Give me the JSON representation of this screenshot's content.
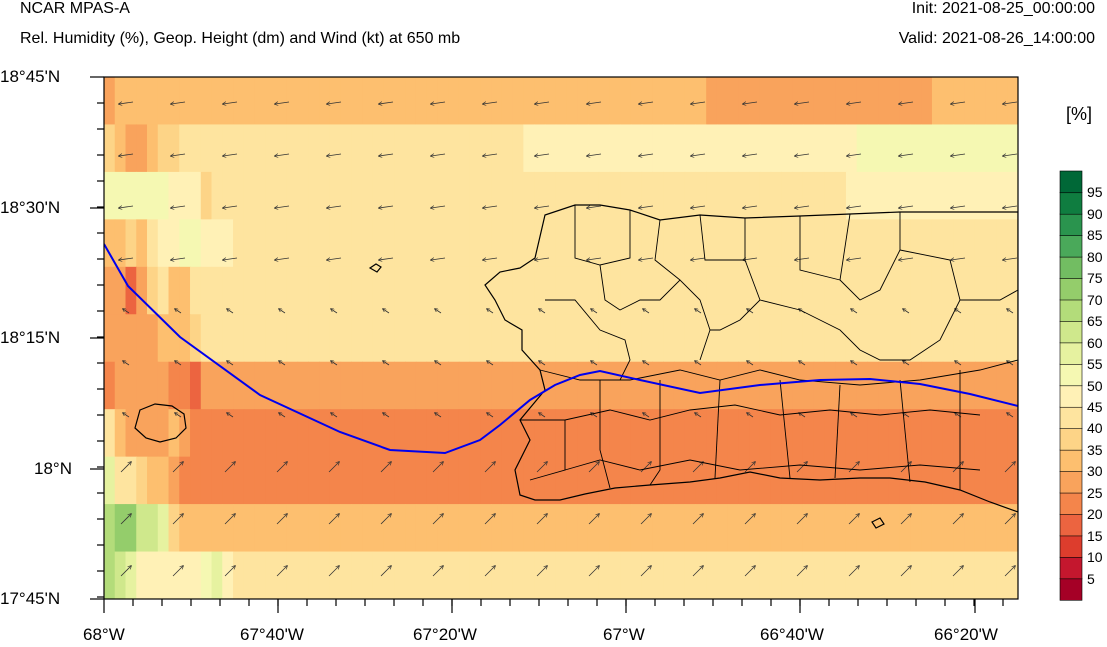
{
  "header": {
    "model": "NCAR MPAS-A",
    "description": "Rel. Humidity (%), Geop. Height (dm) and Wind (kt) at 650 mb",
    "init": "Init: 2021-08-25_00:00:00",
    "valid": "Valid: 2021-08-26_14:00:00"
  },
  "axes": {
    "lat_ticks": [
      "18°45'N",
      "18°30'N",
      "18°15'N",
      "18°N",
      "17°45'N"
    ],
    "lon_ticks": [
      "68°W",
      "67°40'W",
      "67°20'W",
      "67°W",
      "66°40'W",
      "66°20'W"
    ],
    "lat_range": [
      17.75,
      18.75
    ],
    "lon_range": [
      -68.0,
      -66.2467
    ]
  },
  "colorbar": {
    "unit": "[%]",
    "levels": [
      "5",
      "10",
      "15",
      "20",
      "25",
      "30",
      "35",
      "40",
      "45",
      "50",
      "55",
      "60",
      "65",
      "70",
      "75",
      "80",
      "85",
      "90",
      "95"
    ],
    "colors": [
      "#a50026",
      "#c4172e",
      "#dd3d2d",
      "#ec6440",
      "#f4854b",
      "#f9a35c",
      "#fdbf6f",
      "#fdd487",
      "#fee49f",
      "#fff1b6",
      "#f5f8b2",
      "#e6f2a0",
      "#cfe88c",
      "#b3dc7a",
      "#94cd6b",
      "#72bd62",
      "#4aa95a",
      "#2a944e",
      "#0f7d40",
      "#006837"
    ]
  },
  "chart_data": {
    "type": "heatmap",
    "variable": "Relative humidity (%)",
    "cells_note": "RH bin index per row (north to south), 0=<5 ... 19=>95",
    "rh_grid": [
      [
        5,
        6,
        6,
        6,
        6,
        6,
        6,
        6,
        6,
        6,
        6,
        6,
        6,
        6,
        6,
        6,
        6,
        6,
        6,
        6,
        6,
        6,
        6,
        6,
        6,
        6,
        6,
        6,
        6,
        6,
        6,
        6,
        6,
        6,
        6,
        6,
        6,
        6,
        6,
        6,
        6,
        6,
        6,
        6,
        6,
        6,
        6,
        6,
        6,
        6,
        6,
        6,
        6,
        6,
        6,
        6,
        5,
        5,
        5,
        5,
        5,
        5,
        5,
        5,
        5,
        5,
        5,
        5,
        5,
        5,
        5,
        5,
        5,
        5,
        5,
        5,
        5,
        6,
        6,
        6,
        6,
        6,
        6,
        6,
        6
      ],
      [
        7,
        6,
        5,
        5,
        6,
        7,
        7,
        8,
        8,
        8,
        8,
        8,
        8,
        8,
        8,
        8,
        8,
        8,
        8,
        8,
        8,
        8,
        8,
        8,
        8,
        8,
        8,
        8,
        8,
        8,
        8,
        8,
        8,
        8,
        8,
        8,
        8,
        8,
        8,
        9,
        9,
        9,
        9,
        9,
        9,
        9,
        9,
        9,
        9,
        9,
        9,
        9,
        9,
        9,
        9,
        9,
        9,
        9,
        9,
        9,
        9,
        9,
        9,
        9,
        9,
        9,
        9,
        9,
        9,
        9,
        10,
        10,
        10,
        10,
        10,
        10,
        10,
        10,
        10,
        10,
        10,
        10,
        10,
        10,
        10
      ],
      [
        10,
        10,
        10,
        10,
        10,
        10,
        9,
        9,
        9,
        7,
        8,
        8,
        8,
        8,
        8,
        8,
        8,
        8,
        8,
        8,
        8,
        8,
        8,
        8,
        8,
        8,
        8,
        8,
        8,
        8,
        8,
        8,
        8,
        8,
        8,
        8,
        8,
        8,
        8,
        8,
        8,
        8,
        8,
        8,
        8,
        8,
        8,
        8,
        8,
        8,
        8,
        8,
        8,
        8,
        8,
        8,
        8,
        8,
        8,
        8,
        8,
        8,
        8,
        8,
        8,
        8,
        8,
        8,
        8,
        9,
        9,
        9,
        9,
        9,
        9,
        9,
        9,
        9,
        9,
        9,
        9,
        9,
        9,
        9,
        9
      ],
      [
        6,
        6,
        7,
        6,
        8,
        9,
        9,
        10,
        10,
        9,
        9,
        9,
        8,
        8,
        8,
        8,
        8,
        8,
        8,
        8,
        8,
        8,
        8,
        8,
        8,
        8,
        8,
        8,
        8,
        8,
        8,
        8,
        8,
        8,
        8,
        8,
        8,
        8,
        8,
        8,
        8,
        8,
        8,
        8,
        8,
        8,
        8,
        8,
        8,
        8,
        8,
        8,
        8,
        8,
        8,
        8,
        8,
        8,
        8,
        8,
        8,
        8,
        8,
        8,
        8,
        8,
        8,
        8,
        8,
        8,
        8,
        8,
        8,
        8,
        8,
        8,
        8,
        8,
        8,
        8,
        8,
        8,
        8,
        8,
        8
      ],
      [
        5,
        5,
        3,
        5,
        7,
        8,
        6,
        6,
        8,
        8,
        8,
        8,
        8,
        8,
        8,
        8,
        8,
        8,
        8,
        8,
        8,
        8,
        8,
        8,
        8,
        8,
        8,
        8,
        8,
        8,
        8,
        8,
        8,
        8,
        8,
        8,
        8,
        8,
        8,
        8,
        8,
        8,
        8,
        8,
        8,
        8,
        8,
        8,
        8,
        8,
        8,
        8,
        8,
        8,
        8,
        8,
        8,
        8,
        8,
        8,
        8,
        8,
        8,
        8,
        8,
        8,
        8,
        8,
        8,
        8,
        8,
        8,
        8,
        8,
        8,
        8,
        8,
        8,
        8,
        8,
        8,
        8,
        8,
        8,
        8
      ],
      [
        5,
        5,
        5,
        5,
        5,
        6,
        6,
        6,
        7,
        8,
        8,
        8,
        8,
        8,
        8,
        8,
        8,
        8,
        8,
        8,
        8,
        8,
        8,
        8,
        8,
        8,
        8,
        8,
        8,
        8,
        8,
        8,
        8,
        8,
        8,
        8,
        8,
        8,
        8,
        8,
        8,
        8,
        8,
        8,
        8,
        8,
        8,
        8,
        8,
        8,
        8,
        8,
        8,
        8,
        8,
        8,
        8,
        8,
        8,
        8,
        8,
        8,
        8,
        8,
        8,
        8,
        8,
        8,
        8,
        8,
        8,
        8,
        8,
        8,
        8,
        8,
        8,
        8,
        8,
        8,
        8,
        8,
        8,
        8,
        8
      ],
      [
        4,
        5,
        5,
        5,
        5,
        5,
        4,
        4,
        3,
        5,
        5,
        5,
        5,
        5,
        5,
        5,
        5,
        5,
        5,
        5,
        5,
        5,
        5,
        5,
        5,
        5,
        5,
        5,
        5,
        5,
        5,
        5,
        5,
        5,
        5,
        5,
        5,
        5,
        5,
        5,
        5,
        5,
        5,
        5,
        5,
        5,
        5,
        5,
        5,
        5,
        5,
        5,
        5,
        5,
        5,
        5,
        5,
        5,
        5,
        5,
        5,
        5,
        5,
        5,
        5,
        5,
        5,
        5,
        5,
        5,
        5,
        5,
        5,
        5,
        5,
        5,
        5,
        5,
        5,
        5,
        5,
        5,
        5,
        5,
        5
      ],
      [
        8,
        6,
        5,
        5,
        5,
        5,
        6,
        5,
        4,
        4,
        4,
        4,
        4,
        4,
        4,
        4,
        4,
        4,
        4,
        4,
        4,
        4,
        4,
        4,
        4,
        4,
        4,
        4,
        4,
        4,
        4,
        4,
        4,
        4,
        4,
        4,
        4,
        4,
        4,
        4,
        4,
        4,
        4,
        4,
        4,
        4,
        4,
        4,
        4,
        4,
        4,
        4,
        4,
        4,
        4,
        4,
        4,
        4,
        4,
        4,
        4,
        4,
        4,
        4,
        4,
        4,
        4,
        4,
        4,
        4,
        4,
        4,
        4,
        4,
        4,
        4,
        4,
        4,
        4,
        4,
        4,
        4,
        4,
        4,
        4
      ],
      [
        11,
        8,
        8,
        7,
        6,
        6,
        5,
        4,
        4,
        4,
        4,
        4,
        4,
        4,
        4,
        4,
        4,
        4,
        4,
        4,
        4,
        4,
        4,
        4,
        4,
        4,
        4,
        4,
        4,
        4,
        4,
        4,
        4,
        4,
        4,
        4,
        4,
        4,
        4,
        4,
        4,
        4,
        4,
        4,
        4,
        4,
        4,
        4,
        4,
        4,
        4,
        4,
        4,
        4,
        4,
        4,
        4,
        4,
        4,
        4,
        4,
        4,
        4,
        4,
        4,
        4,
        4,
        4,
        4,
        4,
        4,
        4,
        4,
        4,
        4,
        4,
        4,
        4,
        4,
        4,
        4,
        4,
        4,
        4,
        4
      ],
      [
        13,
        14,
        14,
        12,
        12,
        11,
        7,
        6,
        6,
        6,
        6,
        6,
        6,
        6,
        6,
        6,
        6,
        6,
        6,
        6,
        6,
        6,
        6,
        6,
        6,
        6,
        6,
        6,
        6,
        6,
        6,
        6,
        6,
        6,
        6,
        6,
        6,
        6,
        6,
        6,
        6,
        6,
        6,
        6,
        6,
        6,
        6,
        6,
        6,
        6,
        6,
        6,
        6,
        6,
        6,
        6,
        6,
        6,
        6,
        6,
        6,
        6,
        6,
        6,
        6,
        6,
        6,
        6,
        6,
        6,
        6,
        6,
        6,
        6,
        6,
        6,
        6,
        6,
        6,
        6,
        6,
        6,
        6,
        6,
        6
      ],
      [
        13,
        12,
        11,
        9,
        9,
        9,
        9,
        9,
        9,
        10,
        11,
        9,
        8,
        8,
        8,
        8,
        8,
        8,
        8,
        8,
        8,
        8,
        8,
        8,
        8,
        8,
        8,
        8,
        8,
        8,
        8,
        8,
        8,
        8,
        8,
        8,
        8,
        8,
        8,
        8,
        8,
        8,
        8,
        8,
        8,
        8,
        8,
        8,
        8,
        8,
        8,
        8,
        8,
        8,
        8,
        8,
        8,
        8,
        8,
        8,
        8,
        8,
        8,
        8,
        8,
        8,
        8,
        8,
        8,
        8,
        8,
        8,
        8,
        8,
        8,
        8,
        8,
        8,
        8,
        8,
        8,
        8,
        8,
        8,
        8
      ]
    ],
    "contour_height_line": "Geopotential height contour (blue)"
  }
}
